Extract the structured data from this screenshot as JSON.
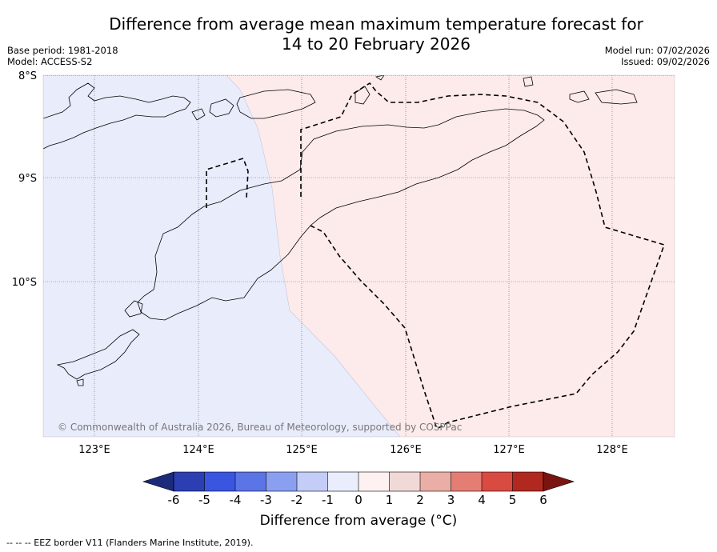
{
  "header": {
    "title_line1": "Difference from average mean maximum temperature forecast for",
    "title_line2": "14 to 20 February 2026",
    "base_period": "Base period: 1981-2018",
    "model": "Model: ACCESS-S2",
    "model_run": "Model run: 07/02/2026",
    "issued": "Issued: 09/02/2026"
  },
  "map": {
    "lat_labels": [
      "8°S",
      "9°S",
      "10°S"
    ],
    "lon_labels": [
      "123°E",
      "124°E",
      "125°E",
      "126°E",
      "127°E",
      "128°E"
    ],
    "copyright": "© Commonwealth of Australia 2026, Bureau of Meteorology, supported by COSPPac"
  },
  "colorbar": {
    "ticks": [
      "-6",
      "-5",
      "-4",
      "-3",
      "-2",
      "-1",
      "0",
      "1",
      "2",
      "3",
      "4",
      "5",
      "6"
    ],
    "colors": [
      "#1b2a7a",
      "#2b3fb3",
      "#3a55e0",
      "#5b74e6",
      "#8b9ff0",
      "#c3cdf7",
      "#eaedfc",
      "#fdf1f1",
      "#f0d9d6",
      "#eaaea7",
      "#e47e75",
      "#d94a40",
      "#b0281f",
      "#7a1410"
    ],
    "label": "Difference from average (°C)"
  },
  "footer": {
    "legend": "-- -- -- EEZ border V11 (Flanders Marine Institute, 2019)."
  }
}
